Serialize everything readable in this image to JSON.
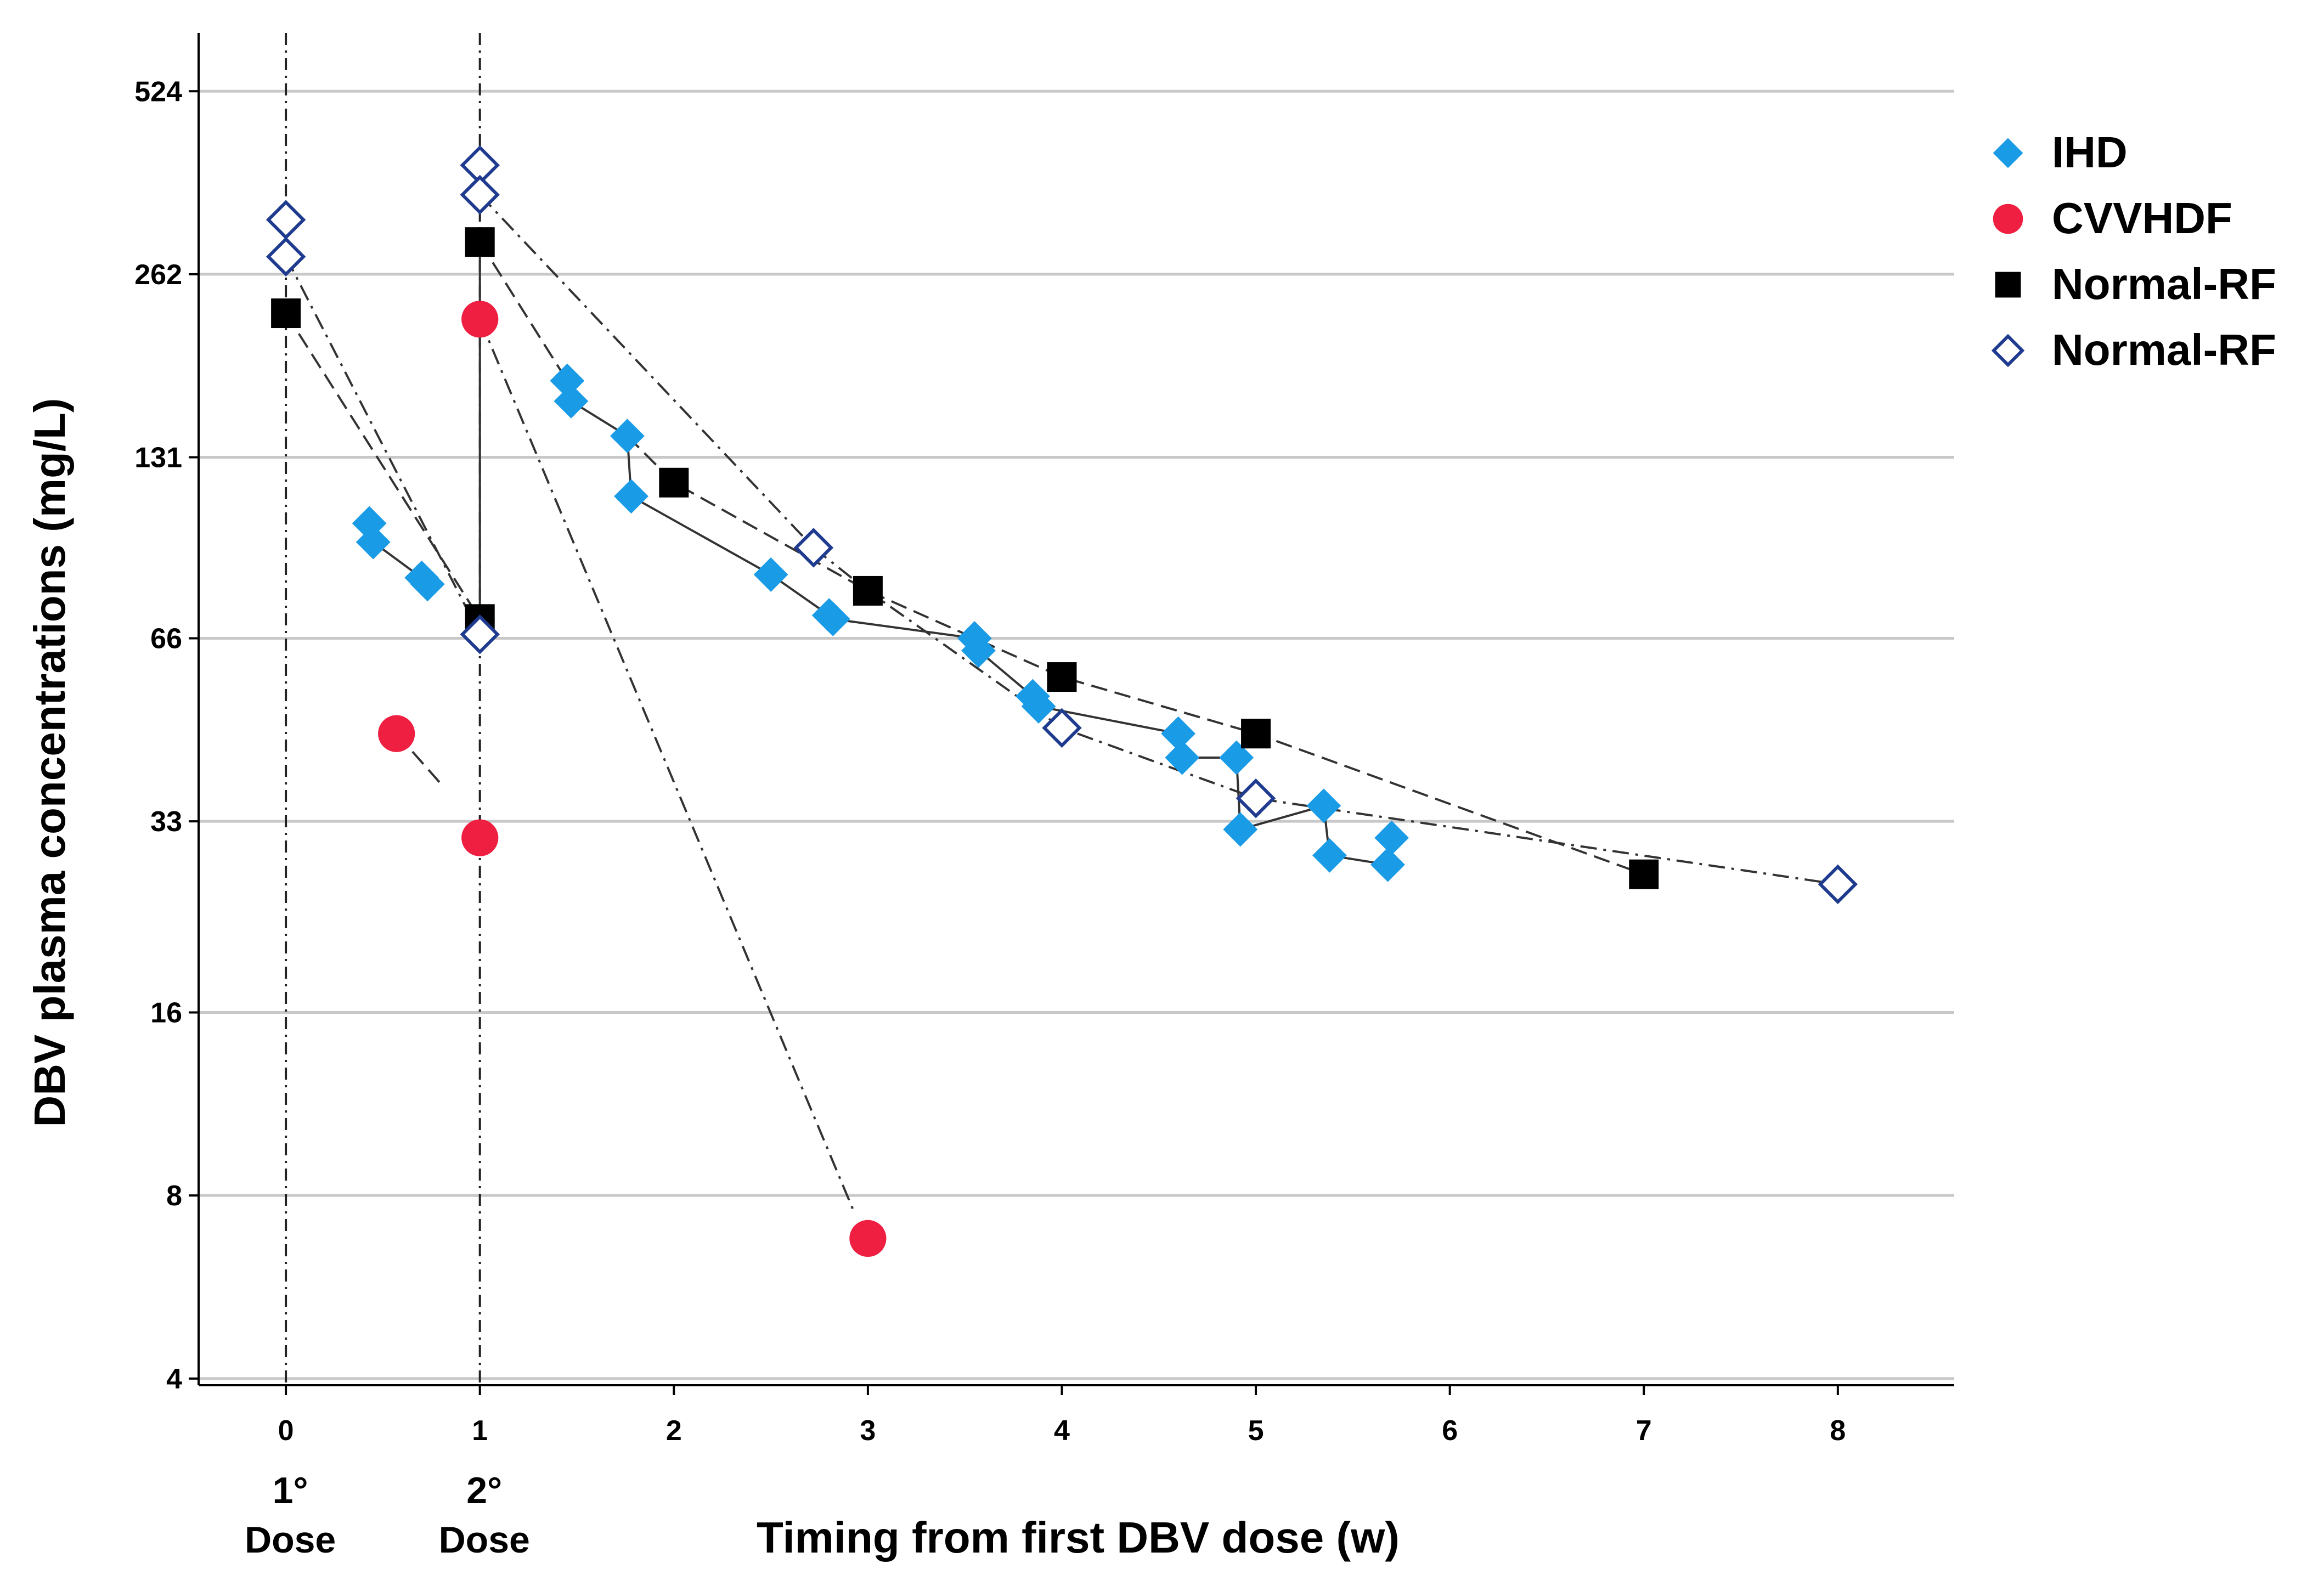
{
  "chart_data": {
    "type": "scatter",
    "title": "",
    "xlabel": "Timing from first DBV dose (w)",
    "ylabel": "DBV plasma concentrations (mg/L)",
    "xlim": [
      -0.45,
      8.6
    ],
    "y_scale": "log2",
    "ylim": [
      3.9,
      640
    ],
    "x_ticks": [
      0,
      1,
      2,
      3,
      4,
      5,
      6,
      7,
      8
    ],
    "x_tick_labels": [
      "0",
      "1",
      "2",
      "3",
      "4",
      "5",
      "6",
      "7",
      "8"
    ],
    "y_ticks": [
      4,
      8,
      16,
      33,
      66,
      131,
      262,
      524
    ],
    "y_tick_labels": [
      "4",
      "8",
      "16",
      "33",
      "66",
      "131",
      "262",
      "524"
    ],
    "grid_y": true,
    "legend_position": "top-right",
    "dose_markers": [
      {
        "x": 0,
        "label_line1": "1°",
        "label_line2": "Dose"
      },
      {
        "x": 1,
        "label_line1": "2°",
        "label_line2": "Dose"
      }
    ],
    "series": [
      {
        "name": "IHD",
        "marker": "diamond-filled",
        "color": "#1a9be6",
        "points": [
          {
            "x": 0.43,
            "y": 102
          },
          {
            "x": 0.45,
            "y": 95
          },
          {
            "x": 0.7,
            "y": 83
          },
          {
            "x": 0.73,
            "y": 81
          },
          {
            "x": 1.45,
            "y": 175
          },
          {
            "x": 1.47,
            "y": 162
          },
          {
            "x": 1.76,
            "y": 142
          },
          {
            "x": 1.78,
            "y": 113
          },
          {
            "x": 2.5,
            "y": 84
          },
          {
            "x": 2.8,
            "y": 72
          },
          {
            "x": 2.82,
            "y": 71
          },
          {
            "x": 3.55,
            "y": 66
          },
          {
            "x": 3.57,
            "y": 63
          },
          {
            "x": 3.85,
            "y": 53
          },
          {
            "x": 3.88,
            "y": 51
          },
          {
            "x": 4.6,
            "y": 46
          },
          {
            "x": 4.62,
            "y": 42
          },
          {
            "x": 4.9,
            "y": 42
          },
          {
            "x": 4.92,
            "y": 32
          },
          {
            "x": 5.35,
            "y": 35
          },
          {
            "x": 5.38,
            "y": 29
          },
          {
            "x": 5.68,
            "y": 28
          },
          {
            "x": 5.7,
            "y": 31
          }
        ]
      },
      {
        "name": "CVVHDF",
        "marker": "circle-filled",
        "color": "#ee1f40",
        "points": [
          {
            "x": 0.57,
            "y": 46
          },
          {
            "x": 1,
            "y": 31
          },
          {
            "x": 1,
            "y": 221
          },
          {
            "x": 3,
            "y": 6.8
          }
        ]
      },
      {
        "name": "Normal-RF",
        "marker": "square-filled",
        "color": "#000000",
        "points": [
          {
            "x": 0,
            "y": 226
          },
          {
            "x": 1,
            "y": 71
          },
          {
            "x": 1,
            "y": 296
          },
          {
            "x": 2,
            "y": 119
          },
          {
            "x": 3,
            "y": 79
          },
          {
            "x": 4,
            "y": 57
          },
          {
            "x": 5,
            "y": 46
          },
          {
            "x": 7,
            "y": 27
          }
        ]
      },
      {
        "name": "Normal-RF",
        "marker": "diamond-open",
        "color": "#1f3b8f",
        "points": [
          {
            "x": 0,
            "y": 322
          },
          {
            "x": 0,
            "y": 280
          },
          {
            "x": 1,
            "y": 67
          },
          {
            "x": 1,
            "y": 396
          },
          {
            "x": 1,
            "y": 354
          },
          {
            "x": 2.72,
            "y": 93
          },
          {
            "x": 4,
            "y": 47
          },
          {
            "x": 5,
            "y": 36
          },
          {
            "x": 8,
            "y": 26
          }
        ]
      }
    ]
  }
}
